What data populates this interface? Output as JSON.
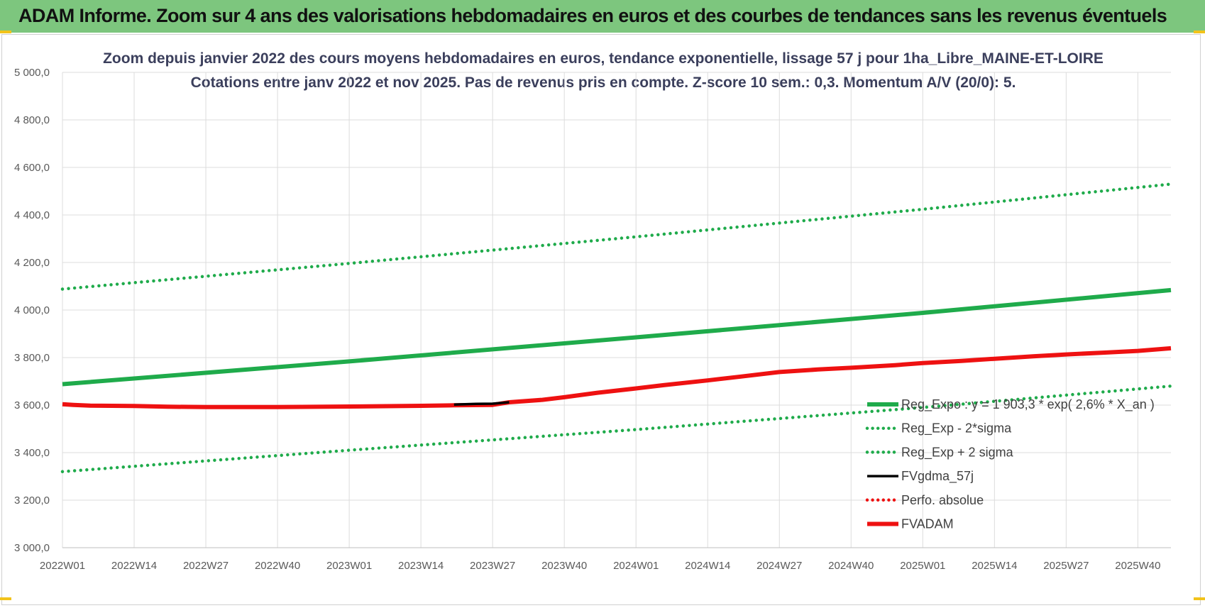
{
  "banner": {
    "title": "ADAM Informe. Zoom sur 4 ans des valorisations hebdomadaires en euros et des courbes de tendances sans les revenus éventuels"
  },
  "colors": {
    "banner_bg": "#7dc67e",
    "trend_green": "#1fab4b",
    "fvadam_red": "#ee1111",
    "fvgdma_black": "#000000",
    "grid": "#dcdcdc"
  },
  "chart_data": {
    "type": "line",
    "title": "Zoom depuis janvier 2022 des cours moyens hebdomadaires en euros, tendance exponentielle, lissage 57 j pour 1ha_Libre_MAINE-ET-LOIRE",
    "subtitle": "Cotations entre janv 2022 et nov 2025. Pas de revenus pris en compte. Z-score 10 sem.: 0,3. Momentum A/V (20/0): 5.",
    "xlabel": "",
    "ylabel": "",
    "ylim": [
      3000,
      5000
    ],
    "y_ticks": [
      "3 000,0",
      "3 200,0",
      "3 400,0",
      "3 600,0",
      "3 800,0",
      "4 000,0",
      "4 200,0",
      "4 400,0",
      "4 600,0",
      "4 800,0",
      "5 000,0"
    ],
    "x_ticks": [
      "2022W01",
      "2022W14",
      "2022W27",
      "2022W40",
      "2023W01",
      "2023W14",
      "2023W27",
      "2023W40",
      "2024W01",
      "2024W14",
      "2024W27",
      "2024W40",
      "2025W01",
      "2025W14",
      "2025W27",
      "2025W40"
    ],
    "x_end": "2025W46",
    "grid": true,
    "legend_position": "right",
    "series": [
      {
        "name": "Reg_Expo : y = 1 903,3 * exp( 2,6% *  X_an )",
        "color": "#1fab4b",
        "style": "solid-thick",
        "points": [
          [
            "2022W01",
            3688
          ],
          [
            "2023W01",
            3784
          ],
          [
            "2024W01",
            3885
          ],
          [
            "2025W01",
            3988
          ],
          [
            "2025W46",
            4084
          ]
        ]
      },
      {
        "name": "Reg_Exp - 2*sigma",
        "color": "#1fab4b",
        "style": "dotted",
        "points": [
          [
            "2022W01",
            3320
          ],
          [
            "2023W01",
            3410
          ],
          [
            "2024W01",
            3497
          ],
          [
            "2025W01",
            3590
          ],
          [
            "2025W46",
            3680
          ]
        ]
      },
      {
        "name": "Reg_Exp + 2 sigma",
        "color": "#1fab4b",
        "style": "dotted",
        "points": [
          [
            "2022W01",
            4088
          ],
          [
            "2023W01",
            4196
          ],
          [
            "2024W01",
            4308
          ],
          [
            "2025W01",
            4424
          ],
          [
            "2025W46",
            4530
          ]
        ]
      },
      {
        "name": "FVgdma_57j",
        "color": "#000000",
        "style": "solid",
        "points": [
          [
            "2023W20",
            3602
          ],
          [
            "2023W24",
            3605
          ],
          [
            "2023W27",
            3606
          ],
          [
            "2023W30",
            3612
          ]
        ]
      },
      {
        "name": "Perfo. absolue",
        "color": "#ee1111",
        "style": "dotted",
        "points": []
      },
      {
        "name": "FVADAM",
        "color": "#ee1111",
        "style": "solid-thick",
        "points": [
          [
            "2022W01",
            3604
          ],
          [
            "2022W03",
            3601
          ],
          [
            "2022W06",
            3598
          ],
          [
            "2022W14",
            3596
          ],
          [
            "2022W20",
            3593
          ],
          [
            "2022W27",
            3592
          ],
          [
            "2022W40",
            3592
          ],
          [
            "2023W01",
            3594
          ],
          [
            "2023W14",
            3597
          ],
          [
            "2023W20",
            3599
          ],
          [
            "2023W27",
            3601
          ],
          [
            "2023W30",
            3612
          ],
          [
            "2023W36",
            3622
          ],
          [
            "2023W40",
            3633
          ],
          [
            "2023W46",
            3652
          ],
          [
            "2024W01",
            3670
          ],
          [
            "2024W06",
            3684
          ],
          [
            "2024W14",
            3704
          ],
          [
            "2024W20",
            3720
          ],
          [
            "2024W27",
            3739
          ],
          [
            "2024W34",
            3750
          ],
          [
            "2024W40",
            3757
          ],
          [
            "2024W48",
            3768
          ],
          [
            "2025W01",
            3777
          ],
          [
            "2025W08",
            3786
          ],
          [
            "2025W14",
            3795
          ],
          [
            "2025W21",
            3805
          ],
          [
            "2025W27",
            3813
          ],
          [
            "2025W34",
            3821
          ],
          [
            "2025W40",
            3828
          ],
          [
            "2025W46",
            3839
          ]
        ]
      }
    ]
  }
}
